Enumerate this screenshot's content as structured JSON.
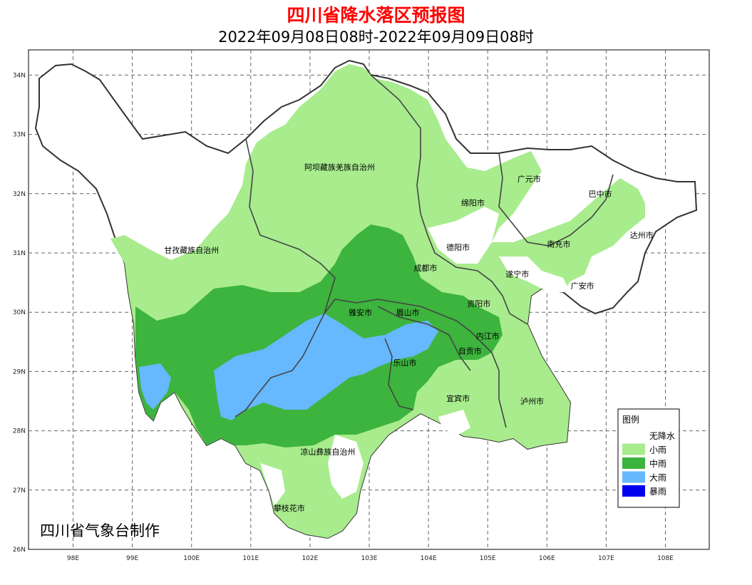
{
  "title": "四川省降水落区预报图",
  "subtitle": "2022年09月08日08时-2022年09月09日08时",
  "credit": "四川省气象台制作",
  "colors": {
    "none": "#ffffff",
    "light": "#a8ec8e",
    "moderate": "#3db43d",
    "heavy": "#66b8ff",
    "storm": "#0000ee",
    "title": "#ff0000"
  },
  "lat_ticks": [
    "34N",
    "33N",
    "32N",
    "31N",
    "30N",
    "29N",
    "28N",
    "27N",
    "26N"
  ],
  "lon_ticks": [
    "98E",
    "99E",
    "100E",
    "101E",
    "102E",
    "103E",
    "104E",
    "105E",
    "106E",
    "107E",
    "108E"
  ],
  "cities": [
    {
      "name": "阿坝藏族羌族自治州",
      "lon": 102.5,
      "lat": 32.4
    },
    {
      "name": "甘孜藏族自治州",
      "lon": 100.0,
      "lat": 31.0
    },
    {
      "name": "凉山彝族自治州",
      "lon": 102.3,
      "lat": 27.6
    },
    {
      "name": "攀枝花市",
      "lon": 101.65,
      "lat": 26.65
    },
    {
      "name": "广元市",
      "lon": 105.7,
      "lat": 32.2
    },
    {
      "name": "绵阳市",
      "lon": 104.75,
      "lat": 31.8
    },
    {
      "name": "巴中市",
      "lon": 106.9,
      "lat": 31.95
    },
    {
      "name": "德阳市",
      "lon": 104.5,
      "lat": 31.05
    },
    {
      "name": "南充市",
      "lon": 106.2,
      "lat": 31.1
    },
    {
      "name": "达州市",
      "lon": 107.6,
      "lat": 31.25
    },
    {
      "name": "成都市",
      "lon": 103.95,
      "lat": 30.7
    },
    {
      "name": "遂宁市",
      "lon": 105.5,
      "lat": 30.6
    },
    {
      "name": "广安市",
      "lon": 106.6,
      "lat": 30.4
    },
    {
      "name": "雅安市",
      "lon": 102.85,
      "lat": 29.95
    },
    {
      "name": "眉山市",
      "lon": 103.65,
      "lat": 29.95
    },
    {
      "name": "资阳市",
      "lon": 104.85,
      "lat": 30.1
    },
    {
      "name": "内江市",
      "lon": 105.0,
      "lat": 29.55
    },
    {
      "name": "乐山市",
      "lon": 103.6,
      "lat": 29.1
    },
    {
      "name": "自贡市",
      "lon": 104.7,
      "lat": 29.3
    },
    {
      "name": "宜宾市",
      "lon": 104.5,
      "lat": 28.5
    },
    {
      "name": "泸州市",
      "lon": 105.75,
      "lat": 28.45
    }
  ],
  "legend": {
    "title": "图例",
    "items": [
      {
        "label": "无降水",
        "color": "#ffffff"
      },
      {
        "label": "小雨",
        "color": "#a8ec8e"
      },
      {
        "label": "中雨",
        "color": "#3db43d"
      },
      {
        "label": "大雨",
        "color": "#66b8ff"
      },
      {
        "label": "暴雨",
        "color": "#0000ee"
      }
    ]
  }
}
